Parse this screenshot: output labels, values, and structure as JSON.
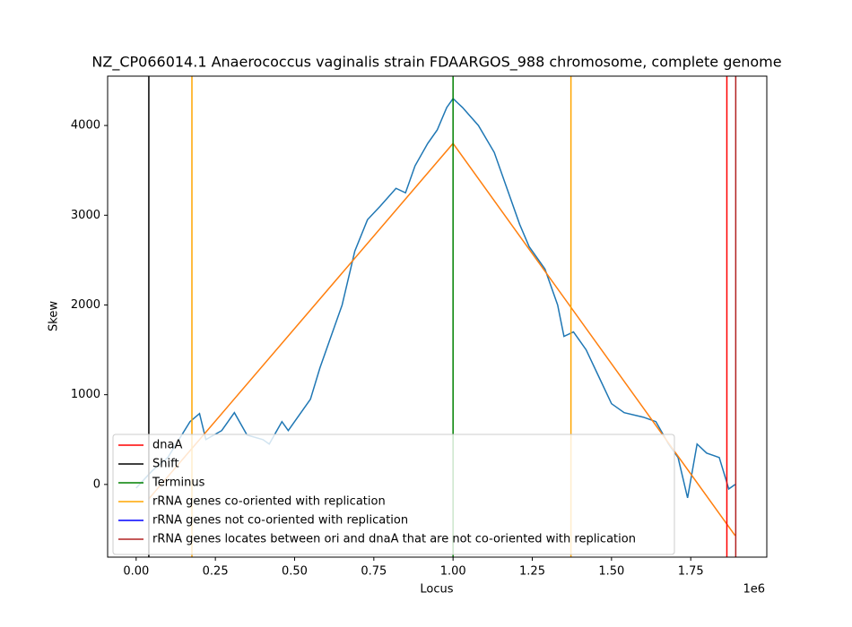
{
  "chart_data": {
    "type": "line",
    "title": "NZ_CP066014.1 Anaerococcus vaginalis strain FDAARGOS_988 chromosome, complete genome",
    "x_label": "Locus",
    "y_label": "Skew",
    "x_offset_label": "1e6",
    "xlim": [
      -0.09,
      1.99
    ],
    "ylim": [
      -810,
      4550
    ],
    "xticks": [
      {
        "value": 0,
        "label": "0.00"
      },
      {
        "value": 0.25,
        "label": "0.25"
      },
      {
        "value": 0.5,
        "label": "0.50"
      },
      {
        "value": 0.75,
        "label": "0.75"
      },
      {
        "value": 1,
        "label": "1.00"
      },
      {
        "value": 1.25,
        "label": "1.25"
      },
      {
        "value": 1.5,
        "label": "1.50"
      },
      {
        "value": 1.75,
        "label": "1.75"
      }
    ],
    "yticks": [
      0,
      1000,
      2000,
      3000,
      4000
    ],
    "skew": {
      "color": "#1f77b4",
      "x": [
        0.0,
        0.05,
        0.1,
        0.17,
        0.2,
        0.22,
        0.27,
        0.31,
        0.35,
        0.4,
        0.42,
        0.46,
        0.48,
        0.52,
        0.55,
        0.58,
        0.61,
        0.65,
        0.69,
        0.73,
        0.77,
        0.82,
        0.85,
        0.88,
        0.92,
        0.95,
        0.98,
        1.0,
        1.03,
        1.08,
        1.13,
        1.17,
        1.21,
        1.24,
        1.29,
        1.33,
        1.35,
        1.38,
        1.42,
        1.46,
        1.5,
        1.54,
        1.6,
        1.64,
        1.68,
        1.71,
        1.74,
        1.77,
        1.8,
        1.84,
        1.87,
        1.89
      ],
      "values": [
        -40,
        150,
        300,
        700,
        790,
        500,
        600,
        800,
        550,
        500,
        450,
        700,
        600,
        800,
        950,
        1300,
        1600,
        2000,
        2600,
        2950,
        3100,
        3300,
        3250,
        3550,
        3800,
        3950,
        4200,
        4300,
        4200,
        4000,
        3700,
        3300,
        2900,
        2650,
        2400,
        2000,
        1650,
        1700,
        1500,
        1200,
        900,
        800,
        750,
        700,
        450,
        300,
        -150,
        450,
        350,
        300,
        -50,
        0
      ]
    },
    "expected": {
      "color": "#ff7f0e",
      "x": [
        0.04,
        1.0,
        1.89
      ],
      "values": [
        -160,
        3800,
        -570
      ]
    },
    "legend": "lower left",
    "markers": [
      {
        "name": "dnaA",
        "color": "#ff0000",
        "x": [
          1.864
        ]
      },
      {
        "name": "Shift",
        "color": "#000000",
        "x": [
          0.04
        ]
      },
      {
        "name": "Terminus",
        "color": "#008000",
        "x": [
          1.0
        ]
      },
      {
        "name": "rRNA genes co-oriented with replication",
        "color": "#ffa500",
        "x": [
          0.176,
          1.372
        ]
      },
      {
        "name": "rRNA genes not co-oriented with replication",
        "color": "#0000ff",
        "x": []
      },
      {
        "name": "rRNA genes locates between ori and dnaA that are not co-oriented with replication",
        "color": "#b22222",
        "x": [
          1.892
        ]
      }
    ]
  }
}
